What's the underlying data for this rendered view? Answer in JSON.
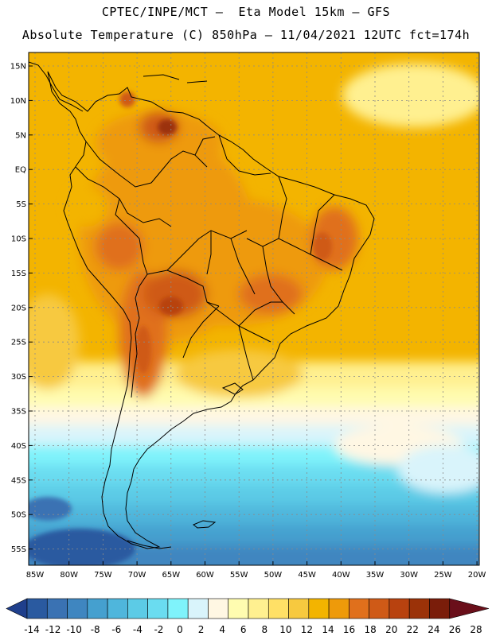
{
  "header": {
    "line1": "CPTEC/INPE/MCT –  Eta Model 15km – GFS",
    "line2": "Absolute Temperature (C) 850hPa – 11/04/2021 12UTC fct=174h"
  },
  "map": {
    "lat_labels": [
      "15N",
      "10N",
      "5N",
      "EQ",
      "5S",
      "10S",
      "15S",
      "20S",
      "25S",
      "30S",
      "35S",
      "40S",
      "45S",
      "50S",
      "55S"
    ],
    "lon_labels": [
      "85W",
      "80W",
      "75W",
      "70W",
      "65W",
      "60W",
      "55W",
      "50W",
      "45W",
      "40W",
      "35W",
      "30W",
      "25W",
      "20W"
    ]
  },
  "colorbar": {
    "labels": [
      "-14",
      "-12",
      "-10",
      "-8",
      "-6",
      "-4",
      "-2",
      "0",
      "2",
      "4",
      "6",
      "8",
      "10",
      "12",
      "14",
      "16",
      "18",
      "20",
      "22",
      "24",
      "26",
      "28"
    ],
    "colors": [
      "#1f3f8c",
      "#2a5aa0",
      "#3a72b3",
      "#3f86c0",
      "#45a0cf",
      "#4fb6dc",
      "#5ccbe6",
      "#6adcf0",
      "#7ff3fb",
      "#d9f4fb",
      "#fff7e3",
      "#fffcb0",
      "#fff090",
      "#ffe066",
      "#f7c93f",
      "#f3b400",
      "#ee9a0a",
      "#e0701c",
      "#cf5a17",
      "#b8420f",
      "#9b3208",
      "#7a1d0a",
      "#6a0f1a"
    ]
  }
}
